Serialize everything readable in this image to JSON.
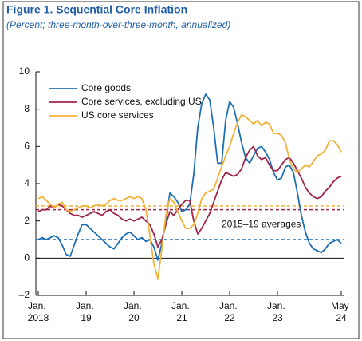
{
  "chart_data": {
    "type": "line",
    "title": "Figure 1.  Sequential Core Inflation",
    "subtitle": "(Percent; three-month-over-three-month, annualized)",
    "x": [
      "2018-01",
      "2018-02",
      "2018-03",
      "2018-04",
      "2018-05",
      "2018-06",
      "2018-07",
      "2018-08",
      "2018-09",
      "2018-10",
      "2018-11",
      "2018-12",
      "2019-01",
      "2019-02",
      "2019-03",
      "2019-04",
      "2019-05",
      "2019-06",
      "2019-07",
      "2019-08",
      "2019-09",
      "2019-10",
      "2019-11",
      "2019-12",
      "2020-01",
      "2020-02",
      "2020-03",
      "2020-04",
      "2020-05",
      "2020-06",
      "2020-07",
      "2020-08",
      "2020-09",
      "2020-10",
      "2020-11",
      "2020-12",
      "2021-01",
      "2021-02",
      "2021-03",
      "2021-04",
      "2021-05",
      "2021-06",
      "2021-07",
      "2021-08",
      "2021-09",
      "2021-10",
      "2021-11",
      "2021-12",
      "2022-01",
      "2022-02",
      "2022-03",
      "2022-04",
      "2022-05",
      "2022-06",
      "2022-07",
      "2022-08",
      "2022-09",
      "2022-10",
      "2022-11",
      "2022-12",
      "2023-01",
      "2023-02",
      "2023-03",
      "2023-04",
      "2023-05",
      "2023-06",
      "2023-07",
      "2023-08",
      "2023-09",
      "2023-10",
      "2023-11",
      "2023-12",
      "2024-01",
      "2024-02",
      "2024-03",
      "2024-04",
      "2024-05"
    ],
    "series": [
      {
        "name": "Core goods",
        "color": "#1f6fb4",
        "values": [
          1.0,
          1.1,
          1.0,
          1.1,
          1.2,
          1.1,
          0.7,
          0.2,
          0.1,
          0.7,
          1.3,
          1.8,
          1.8,
          1.6,
          1.4,
          1.2,
          1.0,
          0.8,
          0.6,
          0.5,
          0.8,
          1.1,
          1.3,
          1.4,
          1.2,
          1.0,
          1.1,
          0.9,
          1.0,
          0.6,
          -0.1,
          0.8,
          1.9,
          3.5,
          3.3,
          3.0,
          2.5,
          2.6,
          2.9,
          4.5,
          7.0,
          8.3,
          8.8,
          8.5,
          7.0,
          5.1,
          5.1,
          7.4,
          8.4,
          8.1,
          7.2,
          6.2,
          5.4,
          5.1,
          5.5,
          5.9,
          6.0,
          5.7,
          5.3,
          4.6,
          4.2,
          4.3,
          4.9,
          5.0,
          4.6,
          3.5,
          2.3,
          1.4,
          0.8,
          0.5,
          0.4,
          0.3,
          0.5,
          0.8,
          0.9,
          1.0,
          0.8
        ]
      },
      {
        "name": "Core services, excluding US",
        "color": "#a0264a",
        "values": [
          2.5,
          2.6,
          2.6,
          2.8,
          2.7,
          2.9,
          2.8,
          2.6,
          2.4,
          2.3,
          2.3,
          2.2,
          2.3,
          2.4,
          2.5,
          2.4,
          2.3,
          2.5,
          2.6,
          2.4,
          2.3,
          2.1,
          2.0,
          2.1,
          2.0,
          2.1,
          2.2,
          2.0,
          1.8,
          1.3,
          0.6,
          1.0,
          1.8,
          2.5,
          2.3,
          2.6,
          2.9,
          3.1,
          3.1,
          2.0,
          1.3,
          1.6,
          2.0,
          2.4,
          3.0,
          3.6,
          4.2,
          4.6,
          4.5,
          4.4,
          4.5,
          4.8,
          5.4,
          5.8,
          6.0,
          5.5,
          5.3,
          5.4,
          5.0,
          4.7,
          4.7,
          5.0,
          5.3,
          5.4,
          5.1,
          4.7,
          4.3,
          3.8,
          3.5,
          3.3,
          3.2,
          3.3,
          3.6,
          3.8,
          4.1,
          4.3,
          4.4
        ]
      },
      {
        "name": "US core services",
        "color": "#f2b23a",
        "values": [
          3.2,
          3.3,
          3.1,
          2.9,
          2.7,
          2.9,
          3.0,
          2.6,
          2.5,
          2.6,
          2.7,
          2.8,
          2.8,
          2.7,
          2.8,
          2.9,
          2.8,
          2.9,
          3.1,
          3.2,
          3.1,
          3.1,
          3.2,
          3.3,
          3.2,
          3.3,
          3.2,
          2.6,
          1.2,
          -0.3,
          -1.1,
          0.5,
          2.3,
          3.2,
          3.0,
          2.5,
          2.0,
          1.6,
          1.6,
          1.8,
          2.4,
          3.2,
          3.5,
          3.6,
          3.7,
          4.3,
          4.9,
          5.5,
          6.0,
          6.7,
          7.3,
          7.7,
          7.6,
          7.4,
          7.2,
          7.4,
          7.1,
          7.3,
          7.2,
          6.7,
          6.7,
          6.6,
          6.2,
          5.3,
          4.8,
          4.6,
          4.8,
          5.0,
          4.9,
          5.2,
          5.5,
          5.6,
          5.8,
          6.3,
          6.3,
          6.1,
          5.7
        ]
      }
    ],
    "reference_lines": [
      {
        "value": 1.0,
        "color": "#1f6fb4"
      },
      {
        "value": 2.6,
        "color": "#a0264a"
      },
      {
        "value": 2.8,
        "color": "#f2b23a"
      }
    ],
    "annotation": "2015–19 averages",
    "ylim": [
      -2,
      10
    ],
    "yticks": [
      {
        "value": -2,
        "label": "–2"
      },
      0,
      2,
      4,
      6,
      8,
      10
    ],
    "xticks": [
      {
        "value": "2018-01",
        "label": "Jan. 2018"
      },
      {
        "value": "2019-01",
        "label": "Jan. 19"
      },
      {
        "value": "2020-01",
        "label": "Jan. 20"
      },
      {
        "value": "2021-01",
        "label": "Jan. 21"
      },
      {
        "value": "2022-01",
        "label": "Jan. 22"
      },
      {
        "value": "2023-01",
        "label": "Jan. 23"
      },
      {
        "value": "2024-05",
        "label": "May 24"
      }
    ],
    "legend": "upper left"
  }
}
